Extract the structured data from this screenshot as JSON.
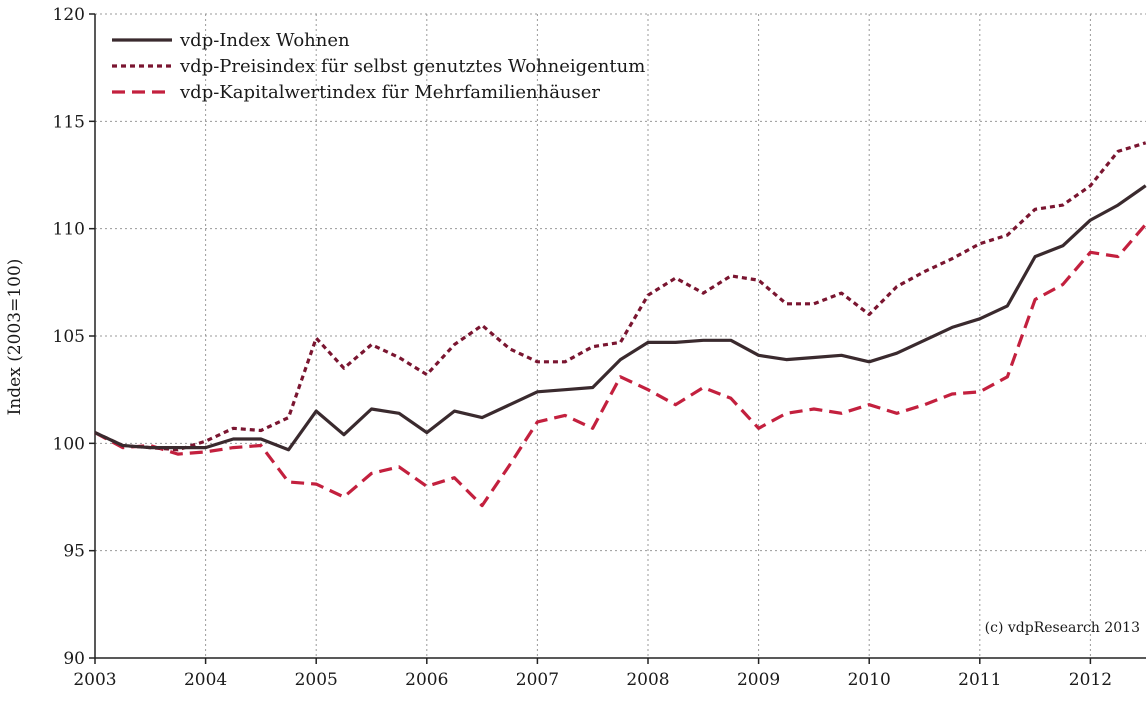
{
  "chart_data": {
    "type": "line",
    "title": "",
    "xlabel": "",
    "ylabel": "Index (2003=100)",
    "xlim": [
      2003,
      2012.5
    ],
    "ylim": [
      90,
      120
    ],
    "yticks": [
      90,
      95,
      100,
      105,
      110,
      115,
      120
    ],
    "xticks": [
      "2003",
      "2004",
      "2005",
      "2006",
      "2007",
      "2008",
      "2009",
      "2010",
      "2011",
      "2012"
    ],
    "grid": true,
    "legend_position": "top-left",
    "credit": "(c) vdpResearch 2013",
    "x": [
      2003.0,
      2003.25,
      2003.5,
      2003.75,
      2004.0,
      2004.25,
      2004.5,
      2004.75,
      2005.0,
      2005.25,
      2005.5,
      2005.75,
      2006.0,
      2006.25,
      2006.5,
      2006.75,
      2007.0,
      2007.25,
      2007.5,
      2007.75,
      2008.0,
      2008.25,
      2008.5,
      2008.75,
      2009.0,
      2009.25,
      2009.5,
      2009.75,
      2010.0,
      2010.25,
      2010.5,
      2010.75,
      2011.0,
      2011.25,
      2011.5,
      2011.75,
      2012.0,
      2012.25,
      2012.5
    ],
    "series": [
      {
        "name": "vdp-Index Wohnen",
        "style": "solid",
        "color": "#3a2a2e",
        "values": [
          100.5,
          99.9,
          99.8,
          99.8,
          99.8,
          100.2,
          100.2,
          99.7,
          101.5,
          100.4,
          101.6,
          101.4,
          100.5,
          101.5,
          101.2,
          101.8,
          102.4,
          102.5,
          102.6,
          103.9,
          104.7,
          104.7,
          104.8,
          104.8,
          104.1,
          103.9,
          104.0,
          104.1,
          103.8,
          104.2,
          104.8,
          105.4,
          105.8,
          106.4,
          108.7,
          109.2,
          110.4,
          111.1,
          112.0
        ]
      },
      {
        "name": "vdp-Preisindex für selbst genutztes Wohneigentum",
        "style": "dotted",
        "color": "#7a1530",
        "values": [
          100.5,
          99.9,
          99.8,
          99.7,
          100.1,
          100.7,
          100.6,
          101.2,
          104.9,
          103.5,
          104.6,
          104.0,
          103.2,
          104.6,
          105.5,
          104.4,
          103.8,
          103.8,
          104.5,
          104.7,
          106.9,
          107.7,
          107.0,
          107.8,
          107.6,
          106.5,
          106.5,
          107.0,
          106.0,
          107.3,
          108.0,
          108.6,
          109.3,
          109.7,
          110.9,
          111.1,
          112.0,
          113.6,
          114.0
        ]
      },
      {
        "name": "vdp-Kapitalwertindex für Mehrfamilienhäuser",
        "style": "dashed",
        "color": "#c3203e",
        "values": [
          100.5,
          99.8,
          99.9,
          99.5,
          99.6,
          99.8,
          99.9,
          98.2,
          98.1,
          97.5,
          98.6,
          98.9,
          98.0,
          98.4,
          97.1,
          99.0,
          101.0,
          101.3,
          100.7,
          103.1,
          102.5,
          101.8,
          102.6,
          102.1,
          100.7,
          101.4,
          101.6,
          101.4,
          101.8,
          101.4,
          101.8,
          102.3,
          102.4,
          103.1,
          106.7,
          107.4,
          108.9,
          108.7,
          110.2
        ]
      }
    ]
  }
}
